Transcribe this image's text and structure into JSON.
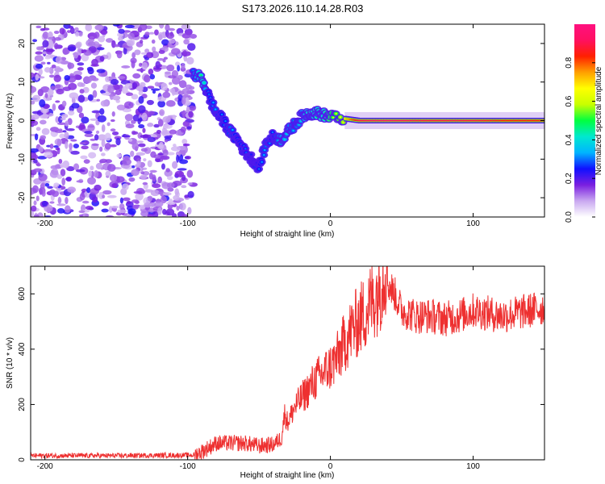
{
  "title": "S173.2026.110.14.28.R03",
  "chart_data": [
    {
      "type": "heatmap",
      "title": "",
      "xlabel": "Height of straight line (km)",
      "ylabel": "Frequency (Hz)",
      "xlim": [
        -210,
        150
      ],
      "ylim": [
        -25,
        25
      ],
      "x_ticks": [
        -200,
        -100,
        0,
        100
      ],
      "y_ticks": [
        -20,
        -10,
        0,
        10,
        20
      ],
      "colorbar": {
        "label": "Normalized spectral amplitude",
        "range": [
          0,
          1
        ],
        "ticks": [
          0.0,
          0.2,
          0.4,
          0.6,
          0.8
        ],
        "tick_labels": [
          "0.0",
          "0.2",
          "0.4",
          "0.6",
          "0.8"
        ],
        "colors": [
          "#ffffff",
          "#c9a8f0",
          "#7a1fe0",
          "#1010ff",
          "#00b4ff",
          "#00e8d0",
          "#00ff40",
          "#c8ff00",
          "#ffff00",
          "#ffa000",
          "#ff2000",
          "#ff1060",
          "#ff1080"
        ]
      },
      "noise_region_x": [
        -210,
        -96
      ],
      "trace": {
        "x": [
          -96,
          -90,
          -85,
          -80,
          -75,
          -70,
          -65,
          -60,
          -55,
          -50,
          -45,
          -40,
          -35,
          -30,
          -25,
          -20,
          -15,
          -10,
          -5,
          0,
          10,
          20,
          40,
          60,
          80,
          100,
          120,
          150
        ],
        "y": [
          12,
          11,
          6,
          2,
          0,
          -3,
          -5,
          -8,
          -10,
          -12,
          -6,
          -4,
          -5,
          -3,
          -1,
          1,
          2,
          2,
          1.5,
          1,
          0.5,
          0,
          0,
          0,
          0,
          0,
          0,
          0
        ],
        "amplitude": [
          0.35,
          0.5,
          0.3,
          0.35,
          0.3,
          0.35,
          0.3,
          0.3,
          0.25,
          0.3,
          0.35,
          0.3,
          0.4,
          0.4,
          0.35,
          0.4,
          0.5,
          0.5,
          0.5,
          0.6,
          0.7,
          0.9,
          0.95,
          0.9,
          0.9,
          0.9,
          0.85,
          0.85
        ]
      }
    },
    {
      "type": "line",
      "title": "",
      "xlabel": "Height of straight line (km)",
      "ylabel": "SNR (10 * v/v)",
      "xlim": [
        -210,
        150
      ],
      "ylim": [
        0,
        700
      ],
      "x_ticks": [
        -200,
        -100,
        0,
        100
      ],
      "y_ticks": [
        0,
        200,
        400,
        600
      ],
      "color": "#ee3030",
      "series": [
        {
          "name": "SNR",
          "x": [
            -210,
            -180,
            -150,
            -120,
            -95,
            -90,
            -85,
            -80,
            -70,
            -60,
            -50,
            -40,
            -34,
            -32,
            -30,
            -25,
            -20,
            -15,
            -10,
            -5,
            0,
            5,
            10,
            15,
            20,
            25,
            30,
            35,
            38,
            40,
            45,
            50,
            60,
            70,
            80,
            90,
            100,
            110,
            120,
            130,
            140,
            150
          ],
          "y": [
            15,
            15,
            15,
            16,
            17,
            30,
            45,
            60,
            60,
            60,
            50,
            55,
            80,
            150,
            120,
            170,
            200,
            230,
            260,
            280,
            300,
            330,
            380,
            420,
            450,
            480,
            520,
            560,
            620,
            640,
            600,
            540,
            520,
            520,
            510,
            520,
            540,
            530,
            520,
            530,
            540,
            550
          ]
        }
      ]
    }
  ]
}
